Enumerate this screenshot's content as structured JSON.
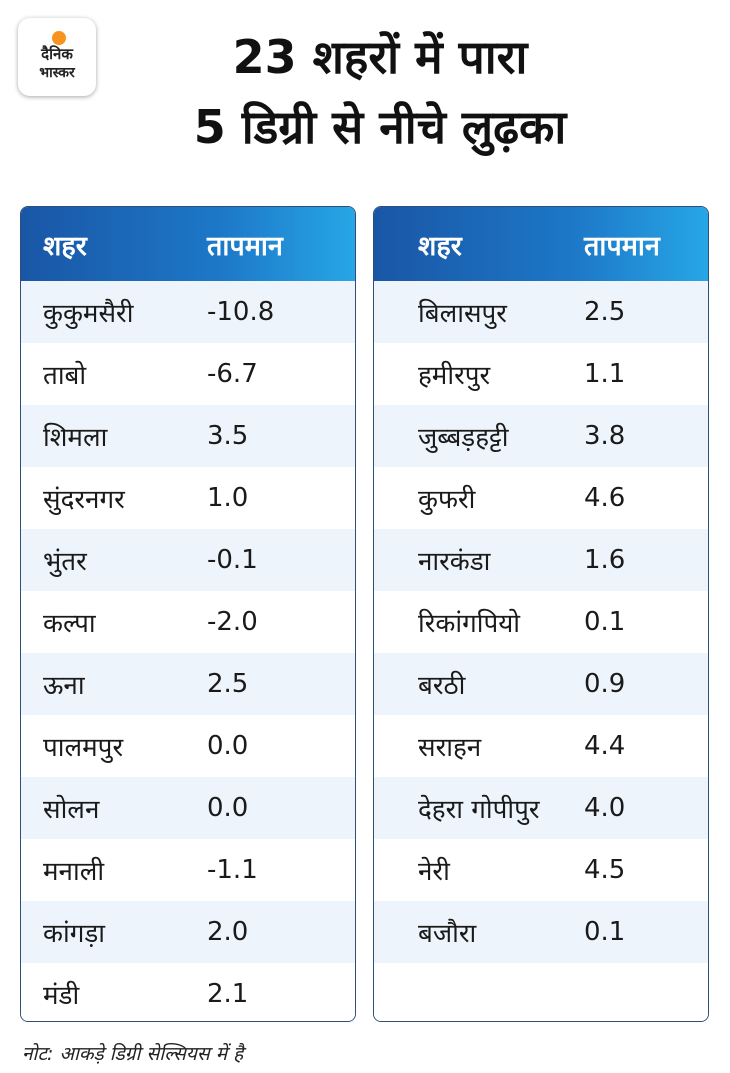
{
  "logo": {
    "line1": "दैनिक",
    "line2": "भास्कर"
  },
  "title": {
    "line1": "23 शहरों में पारा",
    "line2": "5 डिग्री से नीचे लुढ़का"
  },
  "table_header": {
    "city": "शहर",
    "temperature": "तापमान"
  },
  "left_table": [
    {
      "city": "कुकुमसैरी",
      "temp": "-10.8"
    },
    {
      "city": "ताबो",
      "temp": "-6.7"
    },
    {
      "city": "शिमला",
      "temp": "3.5"
    },
    {
      "city": "सुंदरनगर",
      "temp": "1.0"
    },
    {
      "city": "भुंतर",
      "temp": "-0.1"
    },
    {
      "city": "कल्पा",
      "temp": "-2.0"
    },
    {
      "city": "ऊना",
      "temp": "2.5"
    },
    {
      "city": "पालमपुर",
      "temp": "0.0"
    },
    {
      "city": "सोलन",
      "temp": "0.0"
    },
    {
      "city": "मनाली",
      "temp": "-1.1"
    },
    {
      "city": "कांगड़ा",
      "temp": "2.0"
    },
    {
      "city": "मंडी",
      "temp": "2.1"
    }
  ],
  "right_table": [
    {
      "city": "बिलासपुर",
      "temp": "2.5"
    },
    {
      "city": "हमीरपुर",
      "temp": "1.1"
    },
    {
      "city": "जुब्बड़हट्टी",
      "temp": "3.8"
    },
    {
      "city": "कुफरी",
      "temp": "4.6"
    },
    {
      "city": "नारकंडा",
      "temp": "1.6"
    },
    {
      "city": "रिकांगपियो",
      "temp": "0.1"
    },
    {
      "city": "बरठी",
      "temp": "0.9"
    },
    {
      "city": "सराहन",
      "temp": "4.4"
    },
    {
      "city": "देहरा गोपीपुर",
      "temp": "4.0"
    },
    {
      "city": "नेरी",
      "temp": "4.5"
    },
    {
      "city": "बजौरा",
      "temp": "0.1"
    }
  ],
  "note": "नोट: आकड़े डिग्री सेल्सियस में है",
  "colors": {
    "header_start": "#1a56a6",
    "header_end": "#27a6e6",
    "row_alt": "#eef4fb",
    "logo_sun": "#f7931e"
  }
}
